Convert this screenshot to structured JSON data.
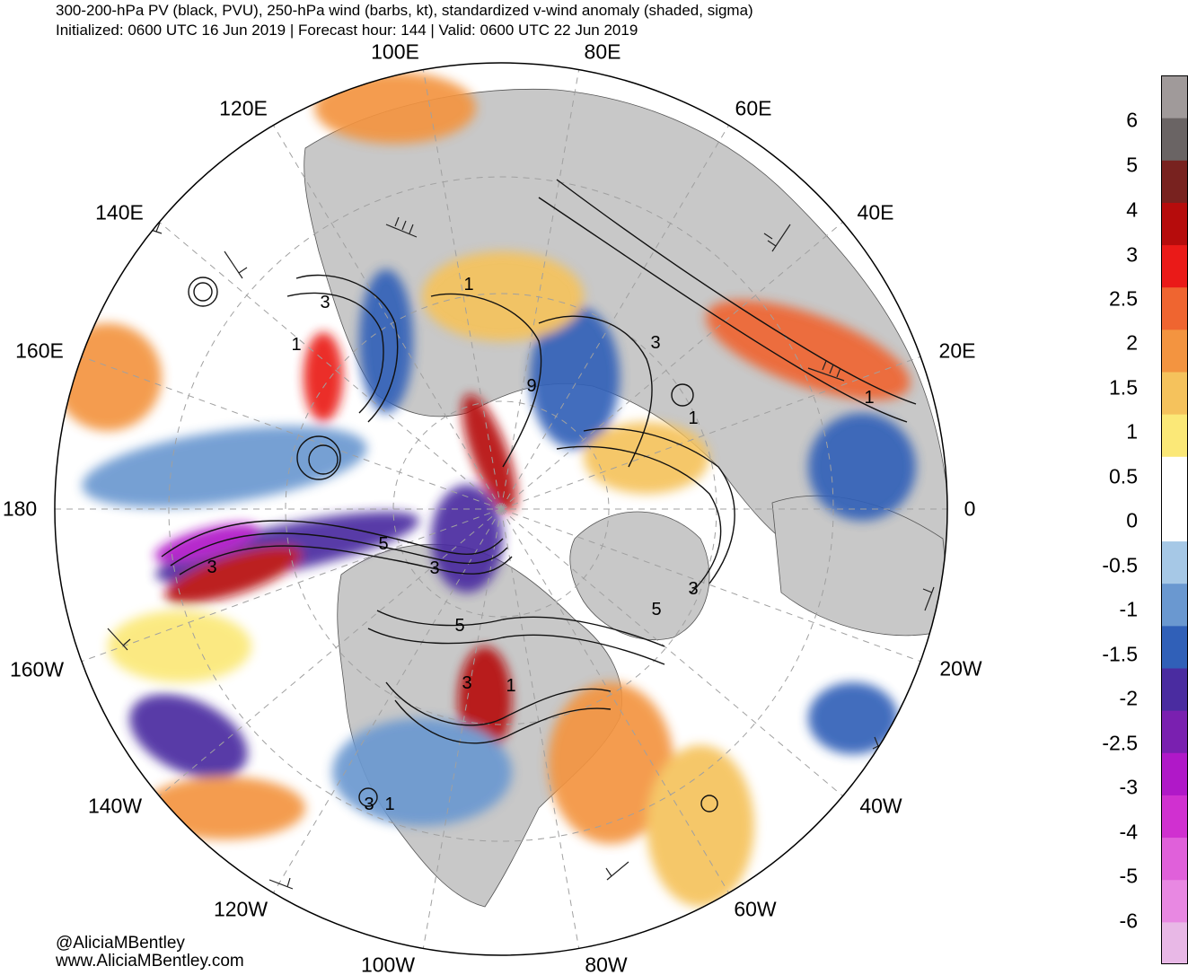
{
  "header": {
    "title": "300-200-hPa PV (black, PVU), 250-hPa wind (barbs, kt), standardized v-wind anomaly (shaded, sigma)",
    "subtitle": "Initialized: 0600 UTC 16 Jun 2019 | Forecast hour: 144 | Valid: 0600 UTC 22 Jun 2019"
  },
  "map": {
    "projection": "north-polar-stereographic",
    "longitude_labels": [
      "100E",
      "80E",
      "120E",
      "60E",
      "140E",
      "40E",
      "160E",
      "20E",
      "180",
      "0",
      "160W",
      "20W",
      "140W",
      "40W",
      "120W",
      "60W",
      "100W",
      "80W"
    ],
    "contour_labels": [
      "1",
      "3",
      "9",
      "3",
      "1",
      "1",
      "3",
      "5",
      "3",
      "5",
      "3",
      "5",
      "1",
      "3",
      "1",
      "3",
      "1"
    ],
    "colors": {
      "land": "#c8c8c8",
      "ocean": "#ffffff",
      "contour": "#000000",
      "graticule": "#a0a0a0"
    }
  },
  "colorbar": {
    "labels": [
      "6",
      "5",
      "4",
      "3",
      "2.5",
      "2",
      "1.5",
      "1",
      "0.5",
      "0",
      "-0.5",
      "-1",
      "-1.5",
      "-2",
      "-2.5",
      "-3",
      "-4",
      "-5",
      "-6"
    ],
    "colors": [
      "#e8b8e6",
      "#e888e2",
      "#e060da",
      "#d030d0",
      "#b018c8",
      "#7a20b0",
      "#4a2ca0",
      "#3060b8",
      "#6a98d0",
      "#a6c8e6",
      "#ffffff",
      "#ffffff",
      "#fbe877",
      "#f5c25c",
      "#f39440",
      "#ef6530",
      "#ea1a18",
      "#b60c0c",
      "#78221f",
      "#6a6464",
      "#a09a9a"
    ]
  },
  "credits": {
    "handle": "@AliciaMBentley",
    "website": "www.AliciaMBentley.com"
  }
}
